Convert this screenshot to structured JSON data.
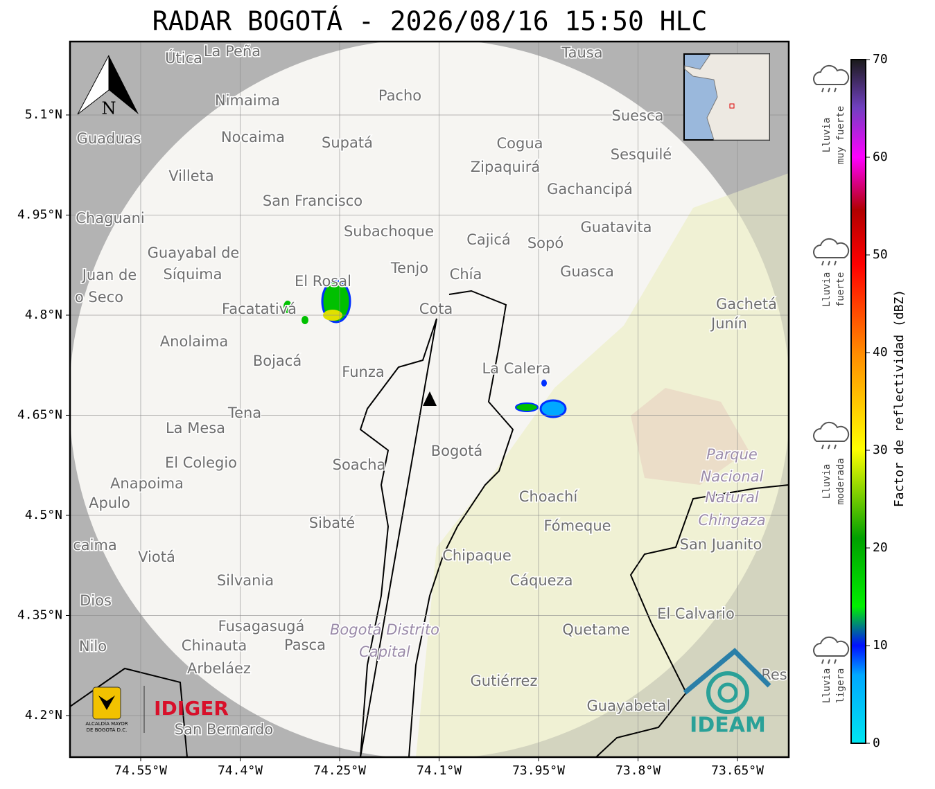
{
  "title": "RADAR BOGOTÁ - 2026/08/16 15:50 HLC",
  "map": {
    "lon_lim": [
      -74.6566,
      -73.5727
    ],
    "lat_lim": [
      4.1377,
      5.21
    ],
    "lon_ticks": [
      {
        "value": -74.55,
        "label": "74.55°W"
      },
      {
        "value": -74.4,
        "label": "74.4°W"
      },
      {
        "value": -74.25,
        "label": "74.25°W"
      },
      {
        "value": -74.1,
        "label": "74.1°W"
      },
      {
        "value": -73.95,
        "label": "73.95°W"
      },
      {
        "value": -73.8,
        "label": "73.8°W"
      },
      {
        "value": -73.65,
        "label": "73.65°W"
      }
    ],
    "lat_ticks": [
      {
        "value": 5.1,
        "label": "5.1°N"
      },
      {
        "value": 4.95,
        "label": "4.95°N"
      },
      {
        "value": 4.8,
        "label": "4.8°N"
      },
      {
        "value": 4.65,
        "label": "4.65°N"
      },
      {
        "value": 4.5,
        "label": "4.5°N"
      },
      {
        "value": 4.35,
        "label": "4.35°N"
      },
      {
        "value": 4.2,
        "label": "4.2°N"
      }
    ],
    "grid": true,
    "north_label": "N",
    "places": [
      "Útica",
      "La Peña",
      "Tausa",
      "Pacho",
      "Nimaima",
      "Suesca",
      "Guaduas",
      "Nocaima",
      "Supatá",
      "Cogua",
      "Sesquilé",
      "Zipaquirá",
      "Villeta",
      "Gachancipá",
      "San Francisco",
      "Chaguani",
      "Guatavita",
      "Subachoque",
      "Cajicá",
      "Sopó",
      "Guayabal de",
      "Síquima",
      "Juan de",
      "Tenjo",
      "Guasca",
      "Chía",
      "o Seco",
      "El Rosal",
      "Facatativá",
      "Cota",
      "Gachetá",
      "Junín",
      "Anolaima",
      "Bojacá",
      "Funza",
      "La Calera",
      "Tena",
      "La Mesa",
      "Bogotá",
      "Parque",
      "Nacional",
      "Natural",
      "Chingaza",
      "El Colegio",
      "Soacha",
      "Anapoima",
      "Choachí",
      "Apulo",
      "Sibaté",
      "Fómeque",
      "San Juanito",
      "caima",
      "Viotá",
      "Chipaque",
      "Silvania",
      "Cáqueza",
      "Dios",
      "El Calvario",
      "Fusagasugá",
      "Quetame",
      "Bogotá Distrito",
      "Capital",
      "Nilo",
      "Chinauta",
      "Pasca",
      "Arbeláez",
      "Gutiérrez",
      "Guayabetal",
      "San Bernardo",
      "Res"
    ]
  },
  "colorbar": {
    "label": "Factor de reflectividad (dBZ)",
    "lim": [
      0,
      70
    ],
    "ticks": [
      0,
      10,
      20,
      30,
      40,
      50,
      60,
      70
    ],
    "categories": [
      [
        "Lluvia",
        "muy fuerte"
      ],
      [
        "Lluvia",
        "fuerte"
      ],
      [
        "Lluvia",
        "moderada"
      ],
      [
        "Lluvia",
        "ligera"
      ]
    ]
  },
  "logos": {
    "alcaldia": [
      "ALCALDÍA MAYOR",
      "DE BOGOTÁ D.C."
    ],
    "idiger": "IDIGER",
    "ideam": "IDEAM"
  }
}
